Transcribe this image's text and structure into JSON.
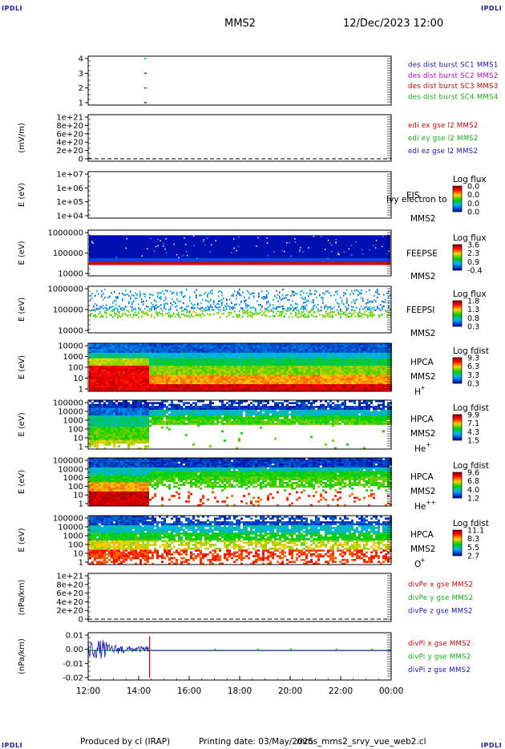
{
  "header": {
    "brand_left": "IPDLI",
    "brand_right": "IPDLI",
    "spacecraft": "MMS2",
    "datetime": "12/Dec/2023 12:00"
  },
  "footer": {
    "brand_left": "IPDLI",
    "brand_right": "IPDLI",
    "produced_by": "Produced by cl (IRAP)",
    "printing_date": "Printing date: 03/May/2025",
    "script": "mms_mms2_srvy_vue_web2.cl"
  },
  "time_axis": {
    "ticks": [
      "12:00",
      "14:00",
      "16:00",
      "18:00",
      "20:00",
      "22:00",
      "00:00"
    ]
  },
  "panels": [
    {
      "id": "burst",
      "ylabel": "",
      "yticks": [
        "4",
        "3",
        "2",
        "1"
      ],
      "legend": [
        {
          "text": "des dist burst SC1 MMS1",
          "color": "#1010c0"
        },
        {
          "text": "des dist burst SC2 MMS2",
          "color": "#c000c0"
        },
        {
          "text": "des dist burst SC3 MMS3",
          "color": "#d00000"
        },
        {
          "text": "des dist burst SC4 MMS4",
          "color": "#10b010"
        }
      ]
    },
    {
      "id": "edi",
      "ylabel": "(mV/m)",
      "yticks": [
        "1e+21",
        "8e+20",
        "6e+20",
        "4e+20",
        "2e+20",
        "0"
      ],
      "legend": [
        {
          "text": "edi ex gse l2 MMS2",
          "color": "#d00000"
        },
        {
          "text": "edi ey gse l2 MMS2",
          "color": "#10b010"
        },
        {
          "text": "edi ez gse l2 MMS2",
          "color": "#1010c0"
        }
      ]
    },
    {
      "id": "eis",
      "ylabel": "E (eV)",
      "yticks": [
        "1e+07",
        "1e+06",
        "1e+05",
        "1e+04"
      ],
      "instrument": "EIS",
      "sc": "MMS2",
      "overlay_text": "Ivy electron to",
      "cbar": {
        "title": "Log flux",
        "ticks": [
          "0.0",
          "0.0",
          "0.0",
          "0.0"
        ]
      }
    },
    {
      "id": "feepse",
      "ylabel": "E (eV)",
      "yticks": [
        "1000000",
        "100000",
        "10000"
      ],
      "instrument": "FEEPSE",
      "sc": "MMS2",
      "cbar": {
        "title": "Log flux",
        "ticks": [
          "3.6",
          "2.3",
          "0.9",
          "-0.4"
        ]
      }
    },
    {
      "id": "feepsi",
      "ylabel": "E (eV)",
      "yticks": [
        "1000000",
        "100000",
        "10000"
      ],
      "instrument": "FEEPSI",
      "sc": "MMS2",
      "cbar": {
        "title": "Log flux",
        "ticks": [
          "1.8",
          "1.3",
          "0.8",
          "0.3"
        ]
      }
    },
    {
      "id": "hpca_h",
      "ylabel": "E (eV)",
      "yticks": [
        "10000",
        "1000",
        "100",
        "10",
        "1"
      ],
      "instrument": "HPCA",
      "sc": "MMS2",
      "species": "H",
      "charge": "+",
      "cbar": {
        "title": "Log fdist",
        "ticks": [
          "9.3",
          "6.3",
          "3.3",
          "0.3"
        ]
      }
    },
    {
      "id": "hpca_he",
      "ylabel": "E (eV)",
      "yticks": [
        "100000",
        "10000",
        "1000",
        "100",
        "10",
        "1"
      ],
      "instrument": "HPCA",
      "sc": "MMS2",
      "species": "He",
      "charge": "+",
      "cbar": {
        "title": "Log fdist",
        "ticks": [
          "9.9",
          "7.1",
          "4.3",
          "1.5"
        ]
      }
    },
    {
      "id": "hpca_hepp",
      "ylabel": "E (eV)",
      "yticks": [
        "100000",
        "10000",
        "1000",
        "100",
        "10",
        "1"
      ],
      "instrument": "HPCA",
      "sc": "MMS2",
      "species": "He",
      "charge": "++",
      "cbar": {
        "title": "Log fdist",
        "ticks": [
          "9.6",
          "6.8",
          "4.0",
          "1.2"
        ]
      }
    },
    {
      "id": "hpca_o",
      "ylabel": "E (eV)",
      "yticks": [
        "100000",
        "10000",
        "1000",
        "100",
        "10",
        "1"
      ],
      "instrument": "HPCA",
      "sc": "MMS2",
      "species": "O",
      "charge": "+",
      "cbar": {
        "title": "Log fdist",
        "ticks": [
          "11.1",
          "8.3",
          "5.5",
          "2.7"
        ]
      }
    },
    {
      "id": "divpe",
      "ylabel": "(nPa/km)",
      "yticks": [
        "1e+21",
        "8e+20",
        "6e+20",
        "4e+20",
        "2e+20",
        "0"
      ],
      "legend": [
        {
          "text": "divPe x gse MMS2",
          "color": "#d00000"
        },
        {
          "text": "divPe y gse MMS2",
          "color": "#10b010"
        },
        {
          "text": "divPe z gse MMS2",
          "color": "#1010c0"
        }
      ]
    },
    {
      "id": "divpi",
      "ylabel": "(nPa/km)",
      "yticks": [
        "0.01",
        "0.00",
        "-0.01",
        "-0.02"
      ],
      "legend": [
        {
          "text": "divPi x gse MMS2",
          "color": "#d00000"
        },
        {
          "text": "divPi y gse MMS2",
          "color": "#10b010"
        },
        {
          "text": "divPi z gse MMS2",
          "color": "#1010c0"
        }
      ]
    }
  ],
  "chart_data": [
    {
      "type": "scatter",
      "panel": "burst",
      "ylim": [
        0.5,
        4.5
      ],
      "x_hours": [
        14.25,
        14.25,
        14.25,
        14.25
      ],
      "y": [
        4,
        3,
        2,
        1
      ],
      "series": [
        {
          "name": "des dist burst SC4 MMS4",
          "x": [
            14.25
          ],
          "y": [
            4
          ]
        },
        {
          "name": "des dist burst SC3 MMS3",
          "x": [
            14.25
          ],
          "y": [
            3
          ]
        },
        {
          "name": "des dist burst SC2 MMS2",
          "x": [
            14.25
          ],
          "y": [
            2
          ]
        },
        {
          "name": "des dist burst SC1 MMS1",
          "x": [
            14.25
          ],
          "y": [
            1
          ]
        }
      ]
    },
    {
      "type": "heatmap",
      "panel": "feepse",
      "ylim": [
        10000,
        1000000
      ],
      "yscale": "log",
      "colorbar_range": [
        -0.4,
        3.6
      ],
      "xlim_hours": [
        12,
        24
      ],
      "note_bands": [
        {
          "emin": 30000,
          "emax": 40000,
          "value": 3.6
        },
        {
          "emin": 40000,
          "emax": 60000,
          "value": 1.2
        },
        {
          "emin": 60000,
          "emax": 600000,
          "value": 0.3
        }
      ]
    },
    {
      "type": "heatmap",
      "panel": "feepsi",
      "ylim": [
        10000,
        1000000
      ],
      "yscale": "log",
      "colorbar_range": [
        0.3,
        1.8
      ],
      "xlim_hours": [
        12,
        24
      ],
      "note_bands": [
        {
          "emin": 60000,
          "emax": 90000,
          "value": 0.9
        },
        {
          "emin": 90000,
          "emax": 200000,
          "value": 0.6
        },
        {
          "emin": 200000,
          "emax": 700000,
          "value": 0.4
        }
      ]
    },
    {
      "type": "heatmap",
      "panel": "hpca_h",
      "ylim": [
        1,
        30000
      ],
      "yscale": "log",
      "colorbar_range": [
        0.3,
        9.3
      ],
      "xlim_hours": [
        12,
        24
      ],
      "transition_hours": 14.4
    },
    {
      "type": "heatmap",
      "panel": "hpca_he",
      "ylim": [
        1,
        100000
      ],
      "yscale": "log",
      "colorbar_range": [
        1.5,
        9.9
      ],
      "xlim_hours": [
        12,
        24
      ],
      "transition_hours": 14.4
    },
    {
      "type": "heatmap",
      "panel": "hpca_hepp",
      "ylim": [
        1,
        100000
      ],
      "yscale": "log",
      "colorbar_range": [
        1.2,
        9.6
      ],
      "xlim_hours": [
        12,
        24
      ],
      "transition_hours": 14.4
    },
    {
      "type": "heatmap",
      "panel": "hpca_o",
      "ylim": [
        1,
        100000
      ],
      "yscale": "log",
      "colorbar_range": [
        2.7,
        11.1
      ],
      "xlim_hours": [
        12,
        24
      ],
      "transition_hours": 14.4
    },
    {
      "type": "line",
      "panel": "divpi",
      "ylim": [
        -0.025,
        0.015
      ],
      "xlim_hours": [
        12,
        24
      ],
      "series": [
        {
          "name": "divPi x gse MMS2",
          "x": [
            12.0,
            12.5,
            13.0,
            13.5,
            14.0,
            14.42,
            14.45,
            16.0,
            20.0,
            24.0
          ],
          "y": [
            0.0,
            0.002,
            -0.001,
            0.001,
            0.0,
            -0.02,
            0.0,
            0.0,
            0.0,
            0.0
          ]
        },
        {
          "name": "divPi y gse MMS2",
          "x": [
            12.0,
            14.4,
            17.0,
            24.0
          ],
          "y": [
            0.0,
            0.0,
            0.0,
            0.0
          ]
        },
        {
          "name": "divPi z gse MMS2",
          "x": [
            12.0,
            12.3,
            12.6,
            13.0,
            13.5,
            14.0,
            14.4,
            16.0,
            24.0
          ],
          "y": [
            0.003,
            0.01,
            -0.002,
            0.004,
            0.002,
            0.001,
            0.003,
            0.0,
            0.0
          ]
        }
      ]
    }
  ]
}
